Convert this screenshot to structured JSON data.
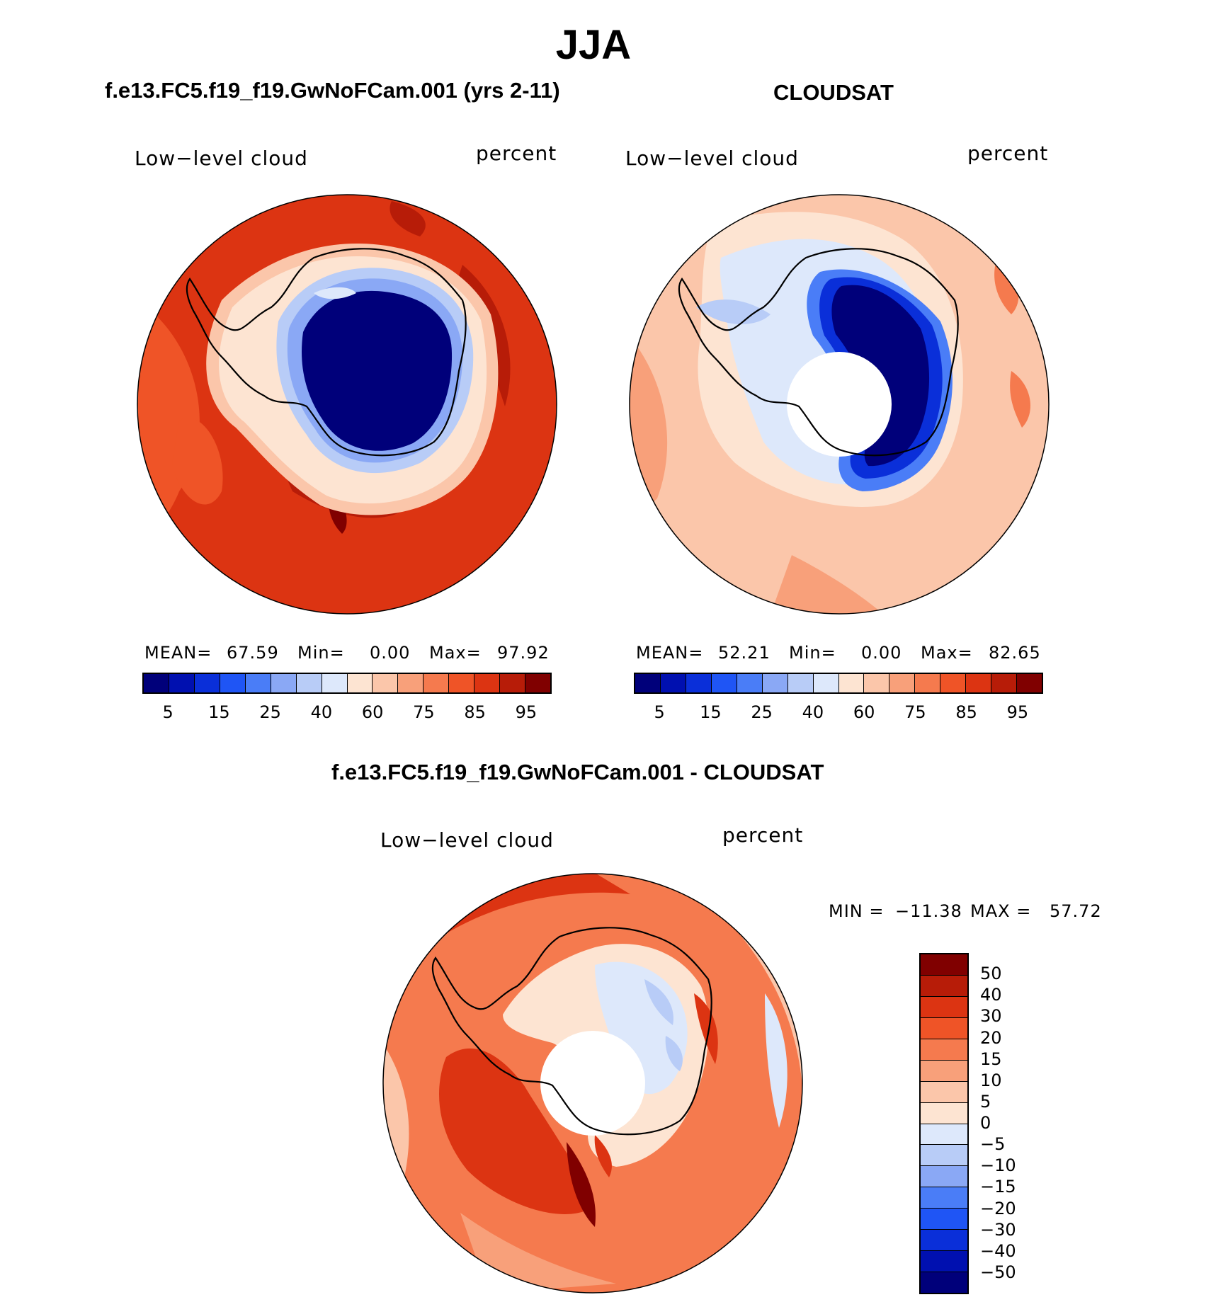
{
  "figure": {
    "title": "JJA"
  },
  "panels": {
    "model": {
      "title": "f.e13.FC5.f19_f19.GwNoFCam.001 (yrs 2-11)",
      "variable": "Low−level cloud",
      "units": "percent",
      "mean_label": "MEAN=",
      "mean_value": "67.59",
      "min_label": "Min=",
      "min_value": "0.00",
      "max_label": "Max=",
      "max_value": "97.92"
    },
    "obs": {
      "title": "CLOUDSAT",
      "variable": "Low−level cloud",
      "units": "percent",
      "mean_label": "MEAN=",
      "mean_value": "52.21",
      "min_label": "Min=",
      "min_value": "0.00",
      "max_label": "Max=",
      "max_value": "82.65"
    },
    "diff": {
      "title": "f.e13.FC5.f19_f19.GwNoFCam.001 - CLOUDSAT",
      "variable": "Low−level cloud",
      "units": "percent",
      "min_label": "MIN =",
      "min_value": "−11.38",
      "max_label": "MAX =",
      "max_value": "57.72"
    }
  },
  "colorbars": {
    "abs_colors": [
      "#00007a",
      "#0010b0",
      "#0a2fd9",
      "#1f55f5",
      "#4a7df7",
      "#8aa8f5",
      "#b8ccf7",
      "#dde8fb",
      "#fde4d2",
      "#fbc6aa",
      "#f8a07a",
      "#f57a4e",
      "#ef5427",
      "#dc3412",
      "#b71c08",
      "#800000"
    ],
    "abs_ticks": [
      "5",
      "15",
      "25",
      "40",
      "60",
      "75",
      "85",
      "95"
    ],
    "diff_colors_top_to_bottom": [
      "#800000",
      "#b71c08",
      "#dc3412",
      "#ef5427",
      "#f57a4e",
      "#f8a07a",
      "#fbc6aa",
      "#fde4d2",
      "#dde8fb",
      "#b8ccf7",
      "#8aa8f5",
      "#4a7df7",
      "#1f55f5",
      "#0a2fd9",
      "#0010b0",
      "#00007a"
    ],
    "diff_ticks_top_to_bottom": [
      "50",
      "40",
      "30",
      "20",
      "15",
      "10",
      "5",
      "0",
      "−5",
      "−10",
      "−15",
      "−20",
      "−30",
      "−40",
      "−50"
    ]
  }
}
